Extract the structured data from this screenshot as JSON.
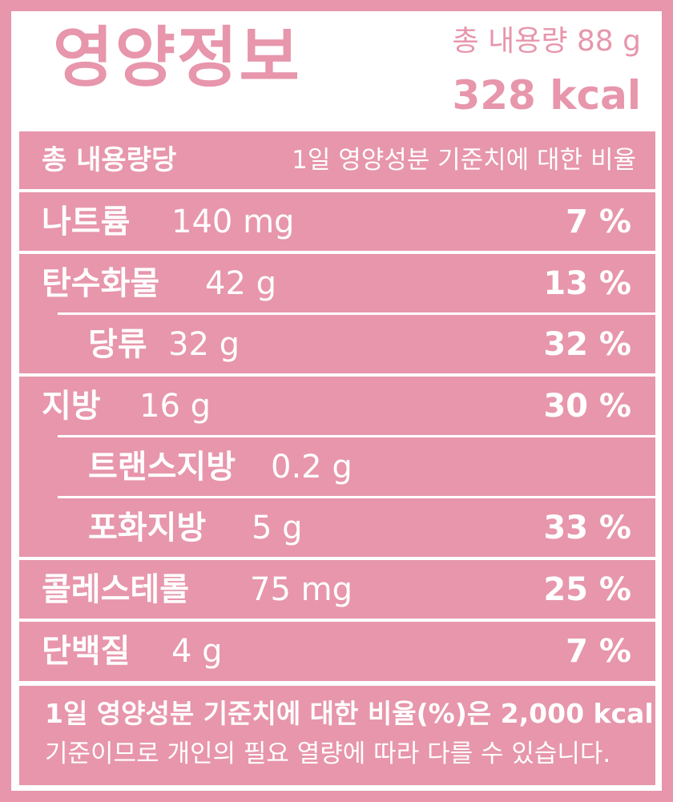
{
  "header": {
    "title": "영양정보",
    "total_amount": "총 내용량 88 g",
    "total_kcal": "328 kcal"
  },
  "table_header": {
    "per": "총 내용량당",
    "basis": "1일 영양성분 기준치에 대한 비율"
  },
  "nutrients": [
    {
      "name": "나트륨",
      "amount": "140 mg",
      "percent": "7 %"
    },
    {
      "name": "탄수화물",
      "amount": "42 g",
      "percent": "13 %"
    },
    {
      "name": "당류",
      "amount": "32 g",
      "percent": "32 %"
    },
    {
      "name": "지방",
      "amount": "16 g",
      "percent": "30 %"
    },
    {
      "name": "트랜스지방",
      "amount": "0.2 g",
      "percent": ""
    },
    {
      "name": "포화지방",
      "amount": "5 g",
      "percent": "33 %"
    },
    {
      "name": "콜레스테롤",
      "amount": "75 mg",
      "percent": "25 %"
    },
    {
      "name": "단백질",
      "amount": "4 g",
      "percent": "7 %"
    }
  ],
  "footnote": {
    "line1": "1일 영양성분 기준치에 대한 비율(%)은 2,000 kcal",
    "line2": "기준이므로 개인의 필요 열량에 따라 다를 수 있습니다."
  },
  "colors": {
    "accent": "#e796ac",
    "text_on_accent": "#ffffff"
  }
}
